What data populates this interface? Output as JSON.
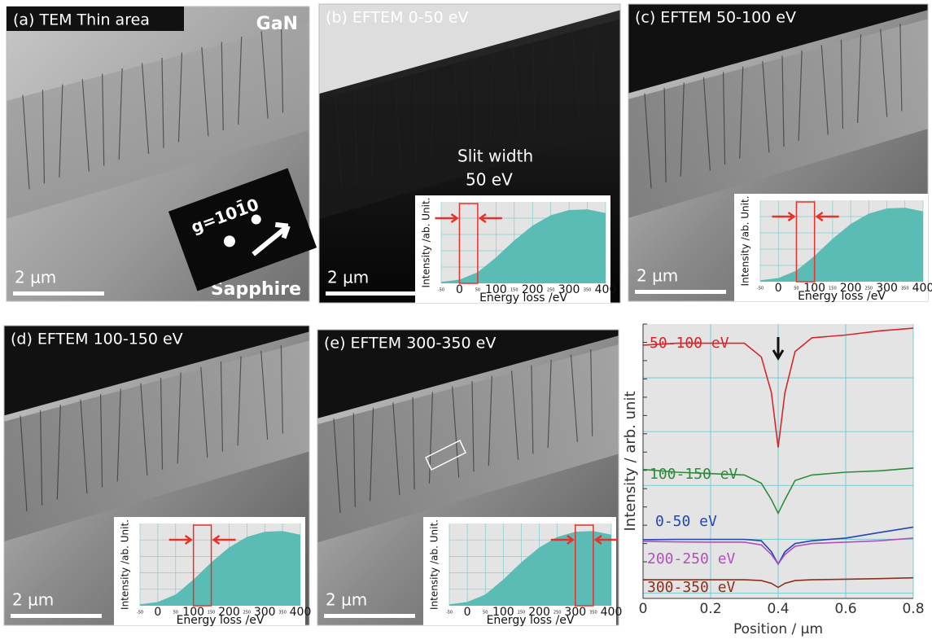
{
  "panels": [
    {
      "label": "(a) TEM  Thin area",
      "scale_bar": "2  µm",
      "annotations": [
        "GaN",
        "Sapphire",
        "g=101̄0"
      ]
    },
    {
      "label": "(b) EFTEM 0-50 eV",
      "scale_bar": "2  µm",
      "annotations": [
        "Slit width",
        "50 eV"
      ]
    },
    {
      "label": "(c) EFTEM 50-100 eV",
      "scale_bar": "2  µm"
    },
    {
      "label": "(d) EFTEM 100-150 eV",
      "scale_bar": "2  µm"
    },
    {
      "label": "(e) EFTEM 300-350 eV",
      "scale_bar": "2  µm"
    }
  ],
  "chart_data": [
    {
      "type": "area",
      "xlabel": "Energy loss /eV",
      "ylabel": "Intensity /ab. Unit.",
      "x": [
        -50,
        0,
        50,
        100,
        150,
        200,
        250,
        300,
        350,
        400
      ],
      "values": [
        2,
        5,
        15,
        35,
        58,
        78,
        92,
        99,
        100,
        95
      ],
      "color": "#5bbcb5",
      "xlim": [
        -50,
        400
      ],
      "ylim": [
        0,
        110
      ],
      "xticks": [
        -50,
        0,
        50,
        100,
        150,
        200,
        250,
        300,
        350,
        400
      ],
      "window": [
        0,
        50
      ],
      "window_color": "#e8312a"
    },
    {
      "type": "area",
      "xlabel": "Energy loss /eV",
      "ylabel": "Intensity /ab. Unit.",
      "x": [
        -50,
        0,
        50,
        100,
        150,
        200,
        250,
        300,
        350,
        400
      ],
      "values": [
        2,
        5,
        15,
        35,
        58,
        78,
        92,
        99,
        100,
        95
      ],
      "color": "#5bbcb5",
      "xlim": [
        -50,
        400
      ],
      "ylim": [
        0,
        110
      ],
      "xticks": [
        -50,
        0,
        50,
        100,
        150,
        200,
        250,
        300,
        350,
        400
      ],
      "window": [
        50,
        100
      ],
      "window_color": "#e8312a"
    },
    {
      "type": "area",
      "xlabel": "Energy loss /eV",
      "ylabel": "Intensity /ab. Unit.",
      "x": [
        -50,
        0,
        50,
        100,
        150,
        200,
        250,
        300,
        350,
        400
      ],
      "values": [
        2,
        5,
        15,
        35,
        58,
        78,
        92,
        99,
        100,
        95
      ],
      "color": "#5bbcb5",
      "xlim": [
        -50,
        400
      ],
      "ylim": [
        0,
        110
      ],
      "xticks": [
        -50,
        0,
        50,
        100,
        150,
        200,
        250,
        300,
        350,
        400
      ],
      "window": [
        100,
        150
      ],
      "window_color": "#e8312a"
    },
    {
      "type": "area",
      "xlabel": "Energy loss /eV",
      "ylabel": "Intensity /ab. Unit.",
      "x": [
        -50,
        0,
        50,
        100,
        150,
        200,
        250,
        300,
        350,
        400
      ],
      "values": [
        2,
        5,
        15,
        35,
        58,
        78,
        92,
        99,
        100,
        95
      ],
      "color": "#5bbcb5",
      "xlim": [
        -50,
        400
      ],
      "ylim": [
        0,
        110
      ],
      "xticks": [
        -50,
        0,
        50,
        100,
        150,
        200,
        250,
        300,
        350,
        400
      ],
      "window": [
        300,
        350
      ],
      "window_color": "#e8312a"
    },
    {
      "type": "line",
      "xlabel": "Position / µm",
      "ylabel": "Intensity / arb. unit",
      "x": [
        0,
        0.1,
        0.2,
        0.3,
        0.35,
        0.38,
        0.4,
        0.42,
        0.45,
        0.5,
        0.6,
        0.7,
        0.8
      ],
      "series": [
        {
          "name": "50-100 eV",
          "color": "#d7262b",
          "values": [
            92.3,
            93,
            93,
            93,
            88,
            75,
            55,
            75,
            90,
            95,
            96,
            97.5,
            98.5
          ]
        },
        {
          "name": "100-150 eV",
          "color": "#2e8b3a",
          "values": [
            47,
            46,
            45.5,
            45,
            42,
            36,
            31,
            36,
            43,
            45,
            46,
            46.5,
            47.5
          ]
        },
        {
          "name": "0-50 eV",
          "color": "#2445b5",
          "values": [
            21.4,
            21.5,
            21.5,
            21.5,
            21,
            17,
            12.5,
            17,
            20,
            21,
            22,
            24,
            26
          ]
        },
        {
          "name": "200-250 eV",
          "color": "#b050b8",
          "values": [
            20.8,
            20.6,
            20.5,
            20.5,
            19.5,
            16,
            12.5,
            16,
            19,
            20,
            20.5,
            21,
            22
          ]
        },
        {
          "name": "300-350 eV",
          "color": "#8a3020",
          "values": [
            6.8,
            6.8,
            6.8,
            6.8,
            6.5,
            5.5,
            4,
            5.5,
            6.5,
            6.8,
            7,
            7.2,
            7.5
          ]
        }
      ],
      "xlim": [
        0,
        0.8
      ],
      "ylim": [
        0,
        100
      ],
      "xticks": [
        0,
        0.2,
        0.4,
        0.6,
        0.8
      ],
      "grid": true,
      "arrow_x": 0.4
    }
  ]
}
